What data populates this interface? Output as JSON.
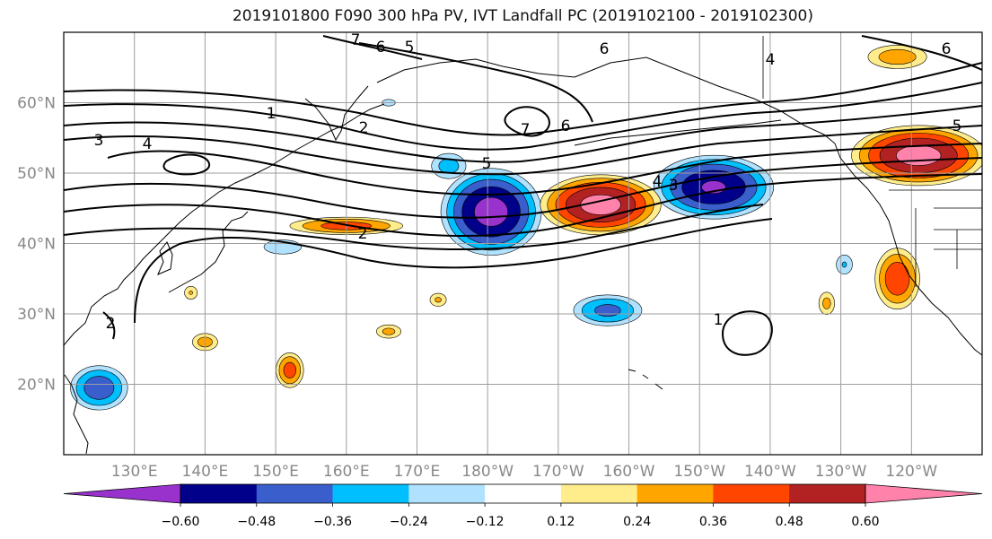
{
  "chart_data": {
    "type": "heatmap",
    "title": "2019101800 F090 300 hPa PV, IVT Landfall PC (2019102100 - 2019102300)",
    "map": {
      "lon_range": [
        120,
        250
      ],
      "lat_range": [
        10,
        70
      ],
      "lon_ticks": [
        130,
        140,
        150,
        160,
        170,
        180,
        190,
        200,
        210,
        220,
        230,
        240
      ],
      "lon_tick_labels": [
        "130°E",
        "140°E",
        "150°E",
        "160°E",
        "170°E",
        "180°W",
        "170°W",
        "160°W",
        "150°W",
        "140°W",
        "130°W",
        "120°W"
      ],
      "lat_ticks": [
        20,
        30,
        40,
        50,
        60
      ],
      "lat_tick_labels": [
        "20°N",
        "30°N",
        "40°N",
        "50°N",
        "60°N"
      ],
      "grid": true
    },
    "colorbar": {
      "orientation": "horizontal",
      "placement": "bottom",
      "extend": "both",
      "boundaries": [
        -0.6,
        -0.48,
        -0.36,
        -0.24,
        -0.12,
        0.12,
        0.24,
        0.36,
        0.48,
        0.6
      ],
      "tick_labels": [
        "−0.60",
        "−0.48",
        "−0.36",
        "−0.24",
        "−0.12",
        "0.12",
        "0.24",
        "0.36",
        "0.48",
        "0.60"
      ],
      "colors": [
        "#9932cc",
        "#00008b",
        "#3a5fcd",
        "#00bfff",
        "#b0e2ff",
        "#ffffff",
        "#ffec8b",
        "#ffa500",
        "#ff4500",
        "#b22222",
        "#ff82ab"
      ]
    },
    "shaded_anomalies": [
      {
        "lon": 180.5,
        "lat": 44.5,
        "rlon": 7.5,
        "rlat": 6.5,
        "peak": -0.66
      },
      {
        "lon": 212,
        "lat": 48,
        "rlon": 9,
        "rlat": 4.8,
        "peak": -0.62
      },
      {
        "lon": 174.5,
        "lat": 51,
        "rlon": 3,
        "rlat": 2.2,
        "peak": -0.3
      },
      {
        "lon": 125,
        "lat": 19.5,
        "rlon": 4.5,
        "rlat": 3.5,
        "peak": -0.45
      },
      {
        "lon": 197,
        "lat": 30.5,
        "rlon": 5.5,
        "rlat": 2.5,
        "peak": -0.4
      },
      {
        "lon": 151,
        "lat": 39.5,
        "rlon": 4,
        "rlat": 1.5,
        "peak": -0.2
      },
      {
        "lon": 166,
        "lat": 60,
        "rlon": 2,
        "rlat": 1,
        "peak": -0.15
      },
      {
        "lon": 230.5,
        "lat": 37,
        "rlon": 1.5,
        "rlat": 1.8,
        "peak": -0.25
      },
      {
        "lon": 196,
        "lat": 45.5,
        "rlon": 9,
        "rlat": 4.5,
        "peak": 0.66
      },
      {
        "lon": 241,
        "lat": 52.5,
        "rlon": 10,
        "rlat": 4.5,
        "peak": 0.66
      },
      {
        "lon": 160,
        "lat": 42.5,
        "rlon": 9,
        "rlat": 1.4,
        "peak": 0.42
      },
      {
        "lon": 238,
        "lat": 35,
        "rlon": 3.5,
        "rlat": 4.8,
        "peak": 0.46
      },
      {
        "lon": 152,
        "lat": 22,
        "rlon": 2.2,
        "rlat": 2.8,
        "peak": 0.42
      },
      {
        "lon": 140,
        "lat": 26,
        "rlon": 2.2,
        "rlat": 1.5,
        "peak": 0.3
      },
      {
        "lon": 166,
        "lat": 27.5,
        "rlon": 2.2,
        "rlat": 1.2,
        "peak": 0.28
      },
      {
        "lon": 173,
        "lat": 32,
        "rlon": 1.5,
        "rlat": 1.2,
        "peak": 0.26
      },
      {
        "lon": 138,
        "lat": 33,
        "rlon": 1.2,
        "rlat": 1.2,
        "peak": 0.25
      },
      {
        "lon": 228,
        "lat": 31.5,
        "rlon": 1.4,
        "rlat": 2,
        "peak": 0.28
      },
      {
        "lon": 238,
        "lat": 66.5,
        "rlon": 5,
        "rlat": 2,
        "peak": 0.32
      }
    ],
    "contour_labels": [
      "1",
      "2",
      "3",
      "4",
      "5",
      "6",
      "7"
    ]
  }
}
